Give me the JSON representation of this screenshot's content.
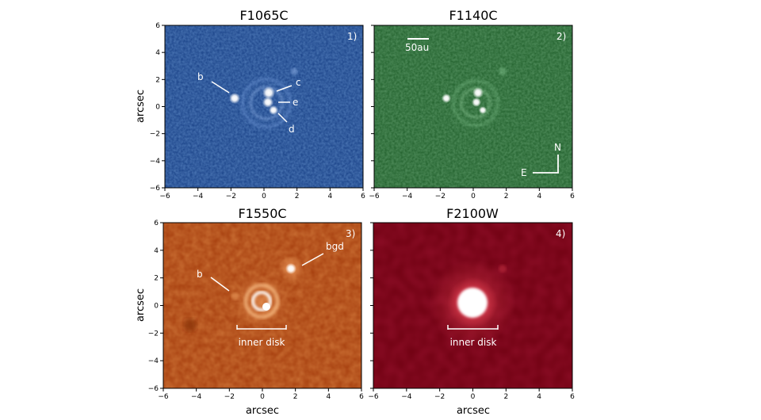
{
  "x_axis_label": "arcsec",
  "y_axis_label": "arcsec",
  "x_ticks": [
    "−6",
    "−4",
    "−2",
    "0",
    "2",
    "4",
    "6"
  ],
  "y_ticks": [
    "6",
    "4",
    "2",
    "0",
    "−2",
    "−4",
    "−6"
  ],
  "panels": [
    {
      "title": "F1065C",
      "number": "1)",
      "colors": {
        "bg": "#173f85",
        "mid": "#4d79c4",
        "bright": "#ffffff"
      },
      "labels": {
        "b": "b",
        "c": "c",
        "e": "e",
        "d": "d"
      }
    },
    {
      "title": "F1140C",
      "number": "2)",
      "colors": {
        "bg": "#1f5e2a",
        "mid": "#5aa362",
        "bright": "#ffffff"
      },
      "scale_bar_label": "50au",
      "compass": {
        "north": "N",
        "east": "E"
      }
    },
    {
      "title": "F1550C",
      "number": "3)",
      "colors": {
        "bg": "#a53d0d",
        "mid": "#e27a3c",
        "bright": "#ffffff"
      },
      "labels": {
        "b": "b",
        "bgd": "bgd"
      },
      "inner_disk_label": "inner disk"
    },
    {
      "title": "F2100W",
      "number": "4)",
      "colors": {
        "bg": "#6e0010",
        "mid": "#c8202c",
        "bright": "#ffffff"
      },
      "inner_disk_label": "inner disk"
    }
  ]
}
